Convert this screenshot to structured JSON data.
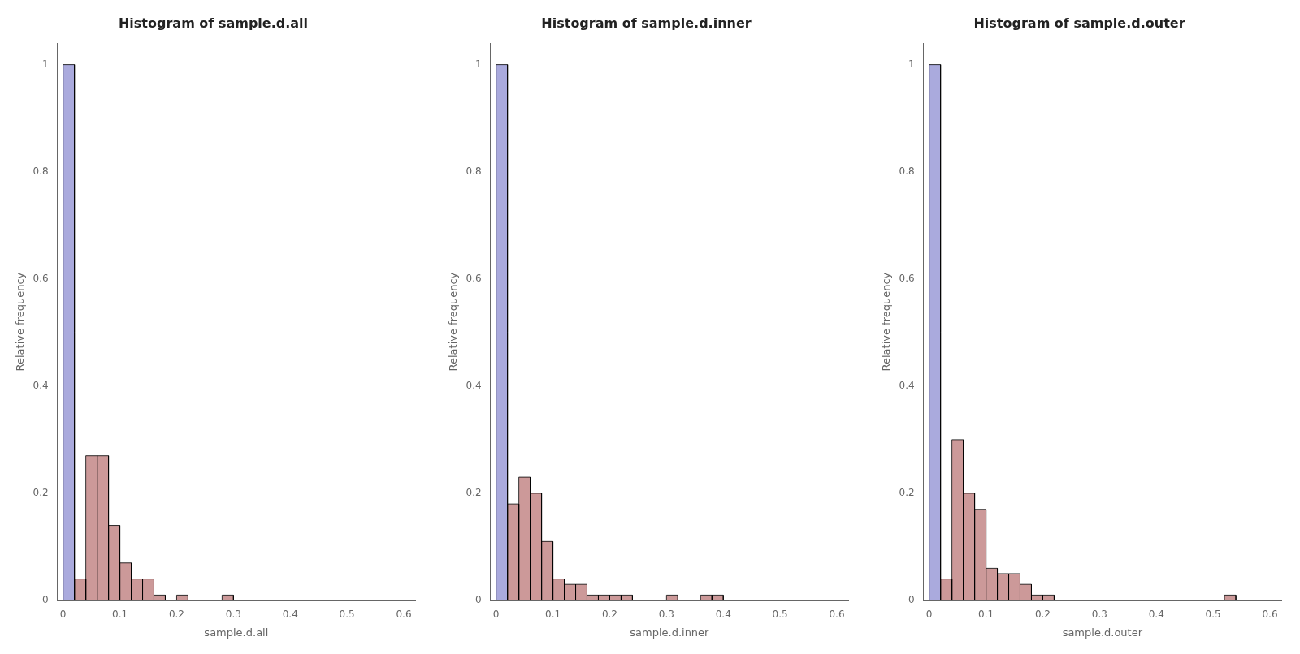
{
  "chart_data": [
    {
      "type": "histogram",
      "title": "Histogram of sample.d.all",
      "xlabel": "sample.d.all",
      "ylabel": "Relative frequency",
      "x": [
        [
          0.0,
          0.02
        ],
        [
          0.02,
          0.04
        ],
        [
          0.04,
          0.06
        ],
        [
          0.06,
          0.08
        ],
        [
          0.08,
          0.1
        ],
        [
          0.1,
          0.12
        ],
        [
          0.12,
          0.14
        ],
        [
          0.14,
          0.16
        ],
        [
          0.16,
          0.18
        ],
        [
          0.2,
          0.22
        ],
        [
          0.28,
          0.3
        ]
      ],
      "values": [
        1.0,
        0.04,
        0.27,
        0.27,
        0.14,
        0.07,
        0.04,
        0.04,
        0.01,
        0.01,
        0.01
      ],
      "colors": [
        "#aaaadd",
        "#cc9999",
        "#cc9999",
        "#cc9999",
        "#cc9999",
        "#cc9999",
        "#cc9999",
        "#cc9999",
        "#cc9999",
        "#cc9999",
        "#cc9999"
      ],
      "xlim": [
        -0.01,
        0.62
      ],
      "ylim": [
        0.0,
        1.04
      ],
      "xticks": [
        0.0,
        0.1,
        0.2,
        0.3,
        0.4,
        0.5,
        0.6
      ],
      "yticks": [
        0.0,
        0.2,
        0.4,
        0.6,
        0.8,
        1.0
      ],
      "grid": false
    },
    {
      "type": "histogram",
      "title": "Histogram of sample.d.inner",
      "xlabel": "sample.d.inner",
      "ylabel": "Relative frequency",
      "x": [
        [
          0.0,
          0.02
        ],
        [
          0.02,
          0.04
        ],
        [
          0.04,
          0.06
        ],
        [
          0.06,
          0.08
        ],
        [
          0.08,
          0.1
        ],
        [
          0.1,
          0.12
        ],
        [
          0.12,
          0.14
        ],
        [
          0.14,
          0.16
        ],
        [
          0.16,
          0.18
        ],
        [
          0.18,
          0.2
        ],
        [
          0.2,
          0.22
        ],
        [
          0.22,
          0.24
        ],
        [
          0.3,
          0.32
        ],
        [
          0.36,
          0.38
        ],
        [
          0.38,
          0.4
        ]
      ],
      "values": [
        1.0,
        0.18,
        0.23,
        0.2,
        0.11,
        0.04,
        0.03,
        0.03,
        0.01,
        0.01,
        0.01,
        0.01,
        0.01,
        0.01,
        0.01
      ],
      "colors": [
        "#aaaadd",
        "#cc9999",
        "#cc9999",
        "#cc9999",
        "#cc9999",
        "#cc9999",
        "#cc9999",
        "#cc9999",
        "#cc9999",
        "#cc9999",
        "#cc9999",
        "#cc9999",
        "#cc9999",
        "#cc9999",
        "#cc9999"
      ],
      "xlim": [
        -0.01,
        0.62
      ],
      "ylim": [
        0.0,
        1.04
      ],
      "xticks": [
        0.0,
        0.1,
        0.2,
        0.3,
        0.4,
        0.5,
        0.6
      ],
      "yticks": [
        0.0,
        0.2,
        0.4,
        0.6,
        0.8,
        1.0
      ],
      "grid": false
    },
    {
      "type": "histogram",
      "title": "Histogram of sample.d.outer",
      "xlabel": "sample.d.outer",
      "ylabel": "Relative frequency",
      "x": [
        [
          0.0,
          0.02
        ],
        [
          0.02,
          0.04
        ],
        [
          0.04,
          0.06
        ],
        [
          0.06,
          0.08
        ],
        [
          0.08,
          0.1
        ],
        [
          0.1,
          0.12
        ],
        [
          0.12,
          0.14
        ],
        [
          0.14,
          0.16
        ],
        [
          0.16,
          0.18
        ],
        [
          0.18,
          0.2
        ],
        [
          0.2,
          0.22
        ],
        [
          0.52,
          0.54
        ]
      ],
      "values": [
        1.0,
        0.04,
        0.3,
        0.2,
        0.17,
        0.06,
        0.05,
        0.05,
        0.03,
        0.01,
        0.01,
        0.01
      ],
      "colors": [
        "#aaaadd",
        "#cc9999",
        "#cc9999",
        "#cc9999",
        "#cc9999",
        "#cc9999",
        "#cc9999",
        "#cc9999",
        "#cc9999",
        "#cc9999",
        "#cc9999",
        "#cc9999"
      ],
      "xlim": [
        -0.01,
        0.62
      ],
      "ylim": [
        0.0,
        1.04
      ],
      "xticks": [
        0.0,
        0.1,
        0.2,
        0.3,
        0.4,
        0.5,
        0.6
      ],
      "yticks": [
        0.0,
        0.2,
        0.4,
        0.6,
        0.8,
        1.0
      ],
      "grid": false
    }
  ]
}
